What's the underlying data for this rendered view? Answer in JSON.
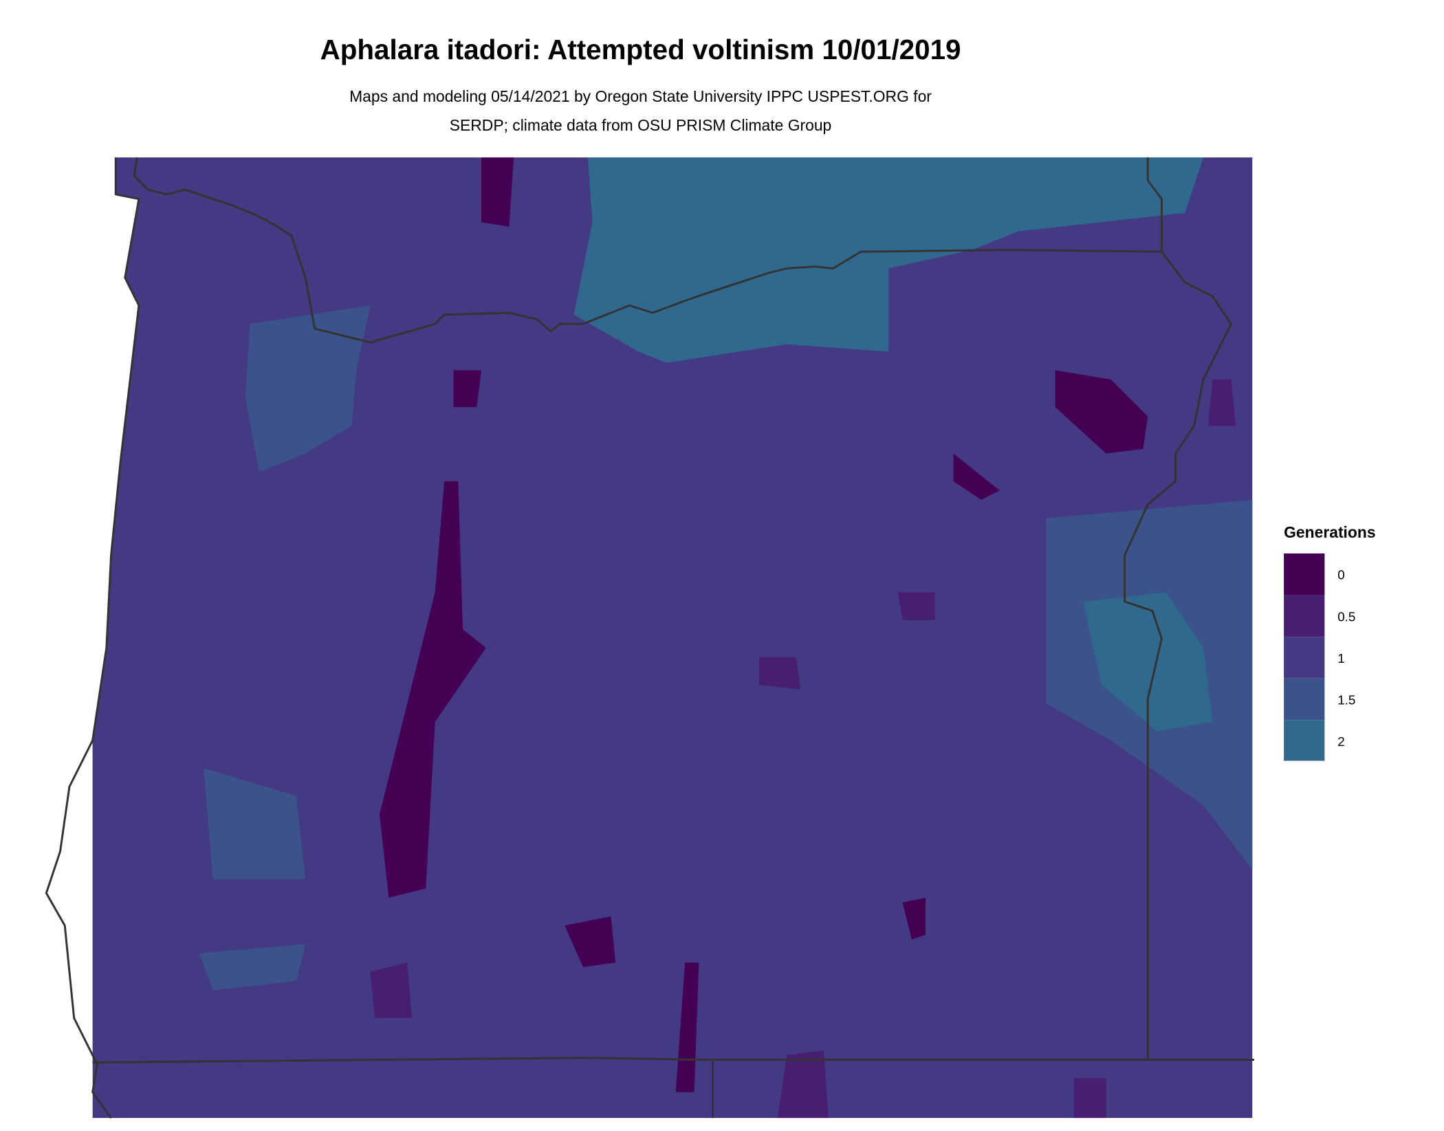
{
  "title": "Aphalara itadori: Attempted voltinism 10/01/2019",
  "subtitle_line1": "Maps and modeling 05/14/2021 by Oregon State University IPPC USPEST.ORG for",
  "subtitle_line2": "SERDP; climate data from OSU PRISM Climate Group",
  "legend": {
    "title": "Generations",
    "items": [
      {
        "label": "0",
        "color": "#440154"
      },
      {
        "label": "0.5",
        "color": "#481f70"
      },
      {
        "label": "1",
        "color": "#443983"
      },
      {
        "label": "1.5",
        "color": "#3b528b"
      },
      {
        "label": "2",
        "color": "#31688e"
      }
    ]
  },
  "map": {
    "region": "Oregon",
    "background_class_color": "#443983",
    "boundary_color": "#333333"
  }
}
